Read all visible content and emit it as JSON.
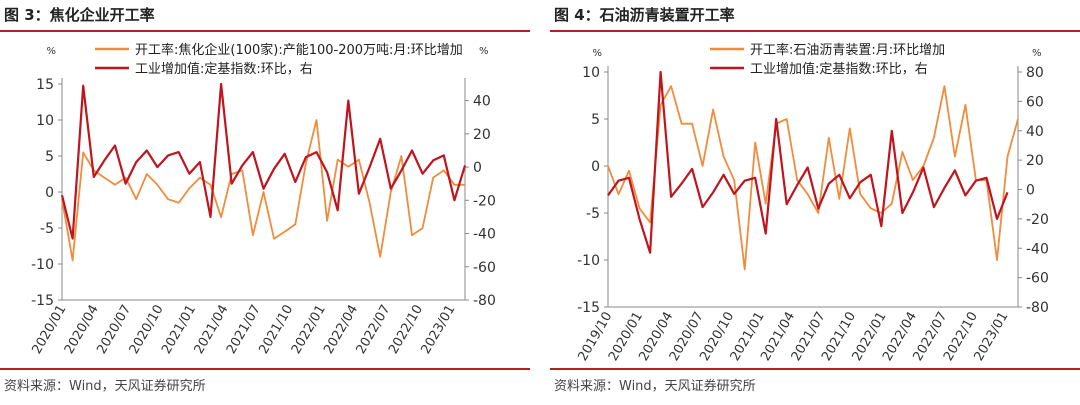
{
  "colors": {
    "orange": "#f08c3c",
    "red": "#c0141e",
    "axis": "#888888",
    "rule": "#b52020"
  },
  "figures": [
    {
      "title": "图 3：焦化企业开工率",
      "source": "资料来源：Wind，天风证券研究所",
      "chart_data": {
        "type": "line",
        "left_axis": {
          "unit": "%",
          "range": [
            -15,
            15
          ],
          "ticks": [
            -15,
            -10,
            -5,
            0,
            5,
            10,
            15
          ]
        },
        "right_axis": {
          "unit": "%",
          "range": [
            -80,
            50
          ],
          "ticks": [
            -80,
            -60,
            -40,
            -20,
            0,
            20,
            40
          ]
        },
        "x_ticks": [
          "2020/01",
          "2020/04",
          "2020/07",
          "2020/10",
          "2021/01",
          "2021/04",
          "2021/07",
          "2021/10",
          "2022/01",
          "2022/04",
          "2022/07",
          "2022/10",
          "2023/01"
        ],
        "series": [
          {
            "name": "开工率:焦化企业(100家):产能100-200万吨:月:环比增加",
            "axis": "left",
            "color": "orange",
            "values": [
              -1,
              -9.5,
              5.5,
              3,
              2,
              1,
              2,
              -1,
              2.5,
              1,
              -1,
              -1.5,
              0.5,
              2,
              1,
              -3.5,
              2.5,
              3,
              -6,
              0,
              -6.5,
              -5.5,
              -4.5,
              4,
              10,
              -4,
              4.5,
              3.5,
              4.5,
              -1.5,
              -9,
              0,
              5,
              -6,
              -5,
              2,
              3,
              1,
              1
            ]
          },
          {
            "name": "工业增加值:定基指数:环比，右",
            "axis": "right",
            "color": "red",
            "values": [
              -17,
              -43,
              49,
              -6,
              4,
              13,
              -10,
              3,
              10,
              0,
              7,
              9,
              -4,
              3,
              -30,
              50,
              -10,
              1,
              9,
              -13,
              -1,
              8,
              -9,
              6,
              9,
              -3,
              -26,
              40,
              -16,
              0,
              17,
              -13,
              -2,
              10,
              -4,
              4,
              7,
              -20,
              1
            ]
          }
        ]
      }
    },
    {
      "title": "图 4：石油沥青装置开工率",
      "source": "资料来源：Wind，天风证券研究所",
      "chart_data": {
        "type": "line",
        "left_axis": {
          "unit": "%",
          "range": [
            -15,
            10
          ],
          "ticks": [
            -15,
            -10,
            -5,
            0,
            5,
            10
          ]
        },
        "right_axis": {
          "unit": "%",
          "range": [
            -80,
            80
          ],
          "ticks": [
            -80,
            -60,
            -40,
            -20,
            0,
            20,
            40,
            60,
            80
          ]
        },
        "x_ticks": [
          "2019/10",
          "2020/01",
          "2020/04",
          "2020/07",
          "2020/10",
          "2021/01",
          "2021/04",
          "2021/07",
          "2021/10",
          "2022/01",
          "2022/04",
          "2022/07",
          "2022/10",
          "2023/01"
        ],
        "series": [
          {
            "name": "开工率:石油沥青装置:月:环比增加",
            "axis": "left",
            "color": "orange",
            "values": [
              0,
              -3,
              -0.5,
              -4.5,
              -6,
              6.5,
              8.5,
              4.5,
              4.5,
              0,
              6,
              1,
              -1.5,
              -11,
              2.5,
              -4,
              4.5,
              5,
              -1.5,
              -3,
              -5,
              3,
              -3.5,
              4,
              -3,
              -4.5,
              -5,
              -4,
              1.5,
              -1.5,
              0,
              3,
              8.5,
              1,
              6.5,
              -1.5,
              -1.5,
              -10,
              1,
              5
            ]
          },
          {
            "name": "工业增加值:定基指数:环比，右",
            "axis": "right",
            "color": "red",
            "values": [
              -4,
              6,
              8,
              -20,
              -43,
              80,
              -5,
              4,
              14,
              -12,
              -2,
              10,
              -3,
              6,
              8,
              -30,
              48,
              -10,
              3,
              15,
              -13,
              4,
              10,
              -6,
              5,
              10,
              -25,
              40,
              -16,
              -2,
              15,
              -12,
              1,
              13,
              -4,
              6,
              8,
              -20,
              -2
            ]
          }
        ]
      }
    }
  ]
}
